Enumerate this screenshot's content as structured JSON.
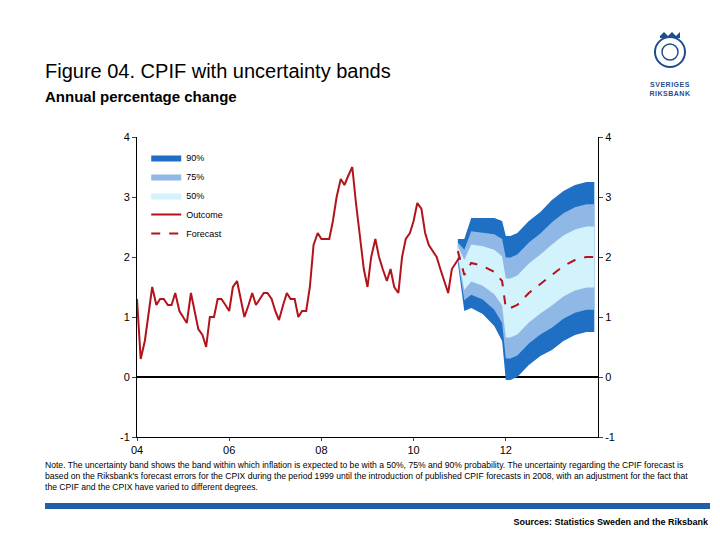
{
  "chart_data": {
    "type": "line",
    "title": "Figure 04. CPIF with uncertainty bands",
    "subtitle": "Annual percentage change",
    "note": "Note. The uncertainty band shows the band within which inflation is expected to be with a 50%, 75% and 90% probability. The uncertainty regarding the CPIF forecast is based on the Riksbank's forecast errors for the CPIX during the period 1999 until the introduction of published CPIF forecasts in 2008, with an adjustment for the fact that the CPIF and the CPIX have varied to different degrees.",
    "source": "Sources: Statistics Sweden and the Riksbank",
    "logo_text": "SVERIGES RIKSBANK",
    "xlim": [
      2004,
      2014
    ],
    "xticks": [
      {
        "value": 2004,
        "label": "04"
      },
      {
        "value": 2006,
        "label": "06"
      },
      {
        "value": 2008,
        "label": "08"
      },
      {
        "value": 2010,
        "label": "10"
      },
      {
        "value": 2012,
        "label": "12"
      }
    ],
    "ylim": [
      -1,
      4
    ],
    "yticks": [
      -1,
      0,
      1,
      2,
      3,
      4
    ],
    "y2lim": [
      -1,
      4
    ],
    "y2ticks": [
      -1,
      0,
      1,
      2,
      3,
      4
    ],
    "grid": false,
    "legend": "top left",
    "bands": [
      {
        "name": "90%",
        "color": "#1f6fc4",
        "x": [
          2010.96,
          2011.1,
          2011.25,
          2011.5,
          2011.75,
          2011.92,
          2012.0,
          2012.1,
          2012.25,
          2012.5,
          2012.75,
          2013.0,
          2013.25,
          2013.5,
          2013.75,
          2013.92
        ],
        "upper": [
          2.3,
          2.3,
          2.65,
          2.65,
          2.65,
          2.6,
          2.35,
          2.35,
          2.4,
          2.6,
          2.75,
          2.95,
          3.1,
          3.2,
          3.25,
          3.25
        ],
        "lower": [
          1.9,
          1.1,
          1.15,
          1.05,
          0.85,
          0.6,
          -0.05,
          -0.05,
          0.0,
          0.2,
          0.35,
          0.45,
          0.6,
          0.7,
          0.75,
          0.75
        ]
      },
      {
        "name": "75%",
        "color": "#8fb8e6",
        "x": [
          2010.96,
          2011.1,
          2011.25,
          2011.5,
          2011.75,
          2011.92,
          2012.0,
          2012.1,
          2012.25,
          2012.5,
          2012.75,
          2013.0,
          2013.25,
          2013.5,
          2013.75,
          2013.92
        ],
        "upper": [
          2.24,
          2.12,
          2.43,
          2.41,
          2.38,
          2.3,
          1.99,
          1.99,
          2.04,
          2.24,
          2.39,
          2.58,
          2.73,
          2.83,
          2.88,
          2.88
        ],
        "lower": [
          1.96,
          1.28,
          1.37,
          1.29,
          1.12,
          0.9,
          0.31,
          0.31,
          0.36,
          0.56,
          0.71,
          0.82,
          0.97,
          1.07,
          1.12,
          1.12
        ]
      },
      {
        "name": "50%",
        "color": "#d2f3fb",
        "x": [
          2010.96,
          2011.1,
          2011.25,
          2011.5,
          2011.75,
          2011.92,
          2012.0,
          2012.1,
          2012.25,
          2012.5,
          2012.75,
          2013.0,
          2013.25,
          2013.5,
          2013.75,
          2013.92
        ],
        "upper": [
          2.18,
          1.95,
          2.21,
          2.18,
          2.12,
          2.01,
          1.64,
          1.64,
          1.69,
          1.89,
          2.04,
          2.21,
          2.36,
          2.46,
          2.51,
          2.51
        ],
        "lower": [
          2.02,
          1.45,
          1.59,
          1.52,
          1.38,
          1.19,
          0.66,
          0.66,
          0.71,
          0.91,
          1.06,
          1.19,
          1.34,
          1.44,
          1.49,
          1.49
        ]
      }
    ],
    "series": [
      {
        "name": "Outcome",
        "color": "#b3131b",
        "line_style": "solid",
        "x": [
          2004.0,
          2004.08,
          2004.17,
          2004.25,
          2004.33,
          2004.42,
          2004.5,
          2004.58,
          2004.67,
          2004.75,
          2004.83,
          2004.92,
          2005.0,
          2005.08,
          2005.17,
          2005.25,
          2005.33,
          2005.42,
          2005.5,
          2005.58,
          2005.67,
          2005.75,
          2005.83,
          2005.92,
          2006.0,
          2006.08,
          2006.17,
          2006.25,
          2006.33,
          2006.42,
          2006.5,
          2006.58,
          2006.67,
          2006.75,
          2006.83,
          2006.92,
          2007.0,
          2007.08,
          2007.17,
          2007.25,
          2007.33,
          2007.42,
          2007.5,
          2007.58,
          2007.67,
          2007.75,
          2007.83,
          2007.92,
          2008.0,
          2008.08,
          2008.17,
          2008.25,
          2008.33,
          2008.42,
          2008.5,
          2008.58,
          2008.67,
          2008.75,
          2008.83,
          2008.92,
          2009.0,
          2009.08,
          2009.17,
          2009.25,
          2009.33,
          2009.42,
          2009.5,
          2009.58,
          2009.67,
          2009.75,
          2009.83,
          2009.92,
          2010.0,
          2010.08,
          2010.17,
          2010.25,
          2010.33,
          2010.42,
          2010.5,
          2010.58,
          2010.67,
          2010.75,
          2010.83,
          2010.92,
          2011.0
        ],
        "values": [
          1.3,
          0.3,
          0.6,
          1.1,
          1.5,
          1.2,
          1.3,
          1.3,
          1.2,
          1.2,
          1.4,
          1.1,
          1.0,
          0.9,
          1.4,
          1.1,
          0.8,
          0.7,
          0.5,
          1.0,
          1.0,
          1.3,
          1.3,
          1.2,
          1.1,
          1.5,
          1.6,
          1.3,
          1.0,
          1.2,
          1.4,
          1.2,
          1.3,
          1.4,
          1.4,
          1.3,
          1.1,
          0.95,
          1.2,
          1.4,
          1.3,
          1.3,
          1.0,
          1.1,
          1.1,
          1.5,
          2.2,
          2.4,
          2.3,
          2.3,
          2.3,
          2.6,
          3.0,
          3.3,
          3.2,
          3.35,
          3.5,
          2.9,
          2.4,
          1.8,
          1.5,
          2.0,
          2.3,
          2.0,
          1.8,
          1.6,
          1.8,
          1.5,
          1.4,
          2.0,
          2.3,
          2.4,
          2.6,
          2.9,
          2.8,
          2.4,
          2.2,
          2.1,
          2.0,
          1.8,
          1.6,
          1.4,
          1.8,
          1.9,
          2.0
        ]
      },
      {
        "name": "Forecast",
        "color": "#b3131b",
        "line_style": "dashed",
        "x": [
          2010.96,
          2011.1,
          2011.25,
          2011.5,
          2011.75,
          2011.92,
          2012.0,
          2012.1,
          2012.25,
          2012.5,
          2012.75,
          2013.0,
          2013.25,
          2013.5,
          2013.75,
          2013.92
        ],
        "values": [
          2.1,
          1.7,
          1.9,
          1.85,
          1.75,
          1.6,
          1.15,
          1.15,
          1.2,
          1.4,
          1.55,
          1.7,
          1.85,
          1.95,
          2.0,
          2.0
        ]
      }
    ]
  }
}
